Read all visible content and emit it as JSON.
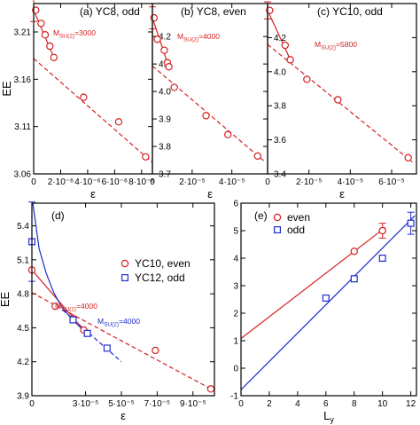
{
  "colors": {
    "red": "#d42020",
    "blue": "#1f2ccf",
    "black": "#000000"
  },
  "chart_data": [
    {
      "type": "scatter",
      "title": "(a) YC8, odd",
      "xlabel": "ε",
      "ylabel": "EE",
      "xlim": [
        0,
        8.8e-06
      ],
      "ylim": [
        3.06,
        3.24
      ],
      "xticks": [
        0,
        2e-06,
        4e-06,
        6e-06,
        8e-06
      ],
      "xtick_labels": [
        "0",
        "2·10⁻⁶",
        "4·10⁻⁶",
        "6·10⁻⁶",
        "8·10⁻⁶"
      ],
      "yticks": [
        3.06,
        3.11,
        3.16,
        3.21
      ],
      "ytick_labels": [
        "3.06",
        "3.11",
        "3.16",
        "3.21"
      ],
      "annotation": "M_SU(2)=3000",
      "series": [
        {
          "style": "circle",
          "color": "red",
          "x": [
            1.5e-07,
            5.5e-07,
            8.5e-07,
            1.2e-06,
            1.5e-06,
            3.7e-06,
            6.3e-06,
            8.3e-06
          ],
          "y": [
            3.233,
            3.219,
            3.207,
            3.195,
            3.183,
            3.141,
            3.115,
            3.078
          ]
        }
      ],
      "fit_solid": {
        "color": "red",
        "x": [
          0,
          1.5e-06
        ],
        "y": [
          3.233,
          3.183
        ]
      },
      "fit_dashed": {
        "color": "red",
        "x": [
          0,
          8.8e-06
        ],
        "y": [
          3.182,
          3.072
        ]
      },
      "error_bars": [
        {
          "x": 0,
          "y": 3.233,
          "err": 0.012,
          "color": "red"
        }
      ]
    },
    {
      "type": "scatter",
      "title": "(b) YC8, even",
      "xlabel": "ε",
      "ylabel": "",
      "xlim": [
        0,
        5.8e-05
      ],
      "ylim": [
        3.7,
        4.32
      ],
      "xticks": [
        0,
        2e-05,
        4e-05
      ],
      "xtick_labels": [
        "0",
        "2·10⁻⁵",
        "4·10⁻⁵"
      ],
      "yticks": [
        3.7,
        3.8,
        3.9,
        4.0,
        4.1,
        4.2
      ],
      "ytick_labels": [
        "3.7",
        "3.8",
        "3.9",
        "4.0",
        "4.1",
        "4.2"
      ],
      "annotation": "M_SU(2)=4000",
      "series": [
        {
          "style": "circle",
          "color": "red",
          "x": [
            8e-07,
            2.5e-06,
            6e-06,
            7.5e-06,
            8.3e-06,
            1.1e-05,
            2.7e-05,
            3.8e-05,
            5.3e-05
          ],
          "y": [
            4.268,
            4.19,
            4.15,
            4.105,
            4.09,
            4.015,
            3.912,
            3.843,
            3.765
          ]
        }
      ],
      "fit_solid": {
        "color": "red",
        "x": [
          0,
          8.2e-06
        ],
        "y": [
          4.268,
          4.09
        ]
      },
      "fit_dashed": {
        "color": "red",
        "x": [
          0,
          5.6e-05
        ],
        "y": [
          4.093,
          3.748
        ]
      },
      "error_bars": [
        {
          "x": 0,
          "y": 4.268,
          "err": 0.04,
          "color": "red"
        }
      ]
    },
    {
      "type": "scatter",
      "title": "(c) YC10, odd",
      "xlabel": "ε",
      "ylabel": "",
      "xlim": [
        0,
        7.2e-05
      ],
      "ylim": [
        3.4,
        4.4
      ],
      "xticks": [
        0,
        2e-05,
        4e-05,
        6e-05
      ],
      "xtick_labels": [
        "0",
        "2·10⁻⁵",
        "4·10⁻⁵",
        "6·10⁻⁵"
      ],
      "yticks": [
        3.4,
        3.6,
        3.8,
        4.0,
        4.2
      ],
      "ytick_labels": [
        "3.4",
        "3.6",
        "3.8",
        "4.0",
        "4.2"
      ],
      "annotation": "M_SU(2)=5800",
      "series": [
        {
          "style": "circle",
          "color": "red",
          "x": [
            1e-06,
            8.5e-06,
            1.1e-05,
            1.9e-05,
            3.4e-05,
            6.8e-05
          ],
          "y": [
            4.36,
            4.155,
            4.07,
            3.955,
            3.835,
            3.495
          ]
        }
      ],
      "fit_solid": {
        "color": "red",
        "x": [
          0,
          1.1e-05
        ],
        "y": [
          4.36,
          4.07
        ]
      },
      "fit_dashed": {
        "color": "red",
        "x": [
          0,
          7e-05
        ],
        "y": [
          4.16,
          3.47
        ]
      },
      "error_bars": [
        {
          "x": 0,
          "y": 4.36,
          "err": 0.05,
          "color": "red"
        }
      ]
    },
    {
      "type": "scatter",
      "title": "(d)",
      "xlabel": "ε",
      "ylabel": "EE",
      "xlim": [
        0,
        0.000102
      ],
      "ylim": [
        3.9,
        5.6
      ],
      "xticks": [
        0,
        3e-05,
        5e-05,
        7e-05,
        9e-05
      ],
      "xtick_labels": [
        "0",
        "3·10⁻⁵",
        "5·10⁻⁵",
        "7·10⁻⁵",
        "9·10⁻⁵"
      ],
      "yticks": [
        3.9,
        4.2,
        4.5,
        4.8,
        5.1,
        5.4
      ],
      "ytick_labels": [
        "3.9",
        "4.2",
        "4.5",
        "4.8",
        "5.1",
        "5.4"
      ],
      "legend": [
        {
          "label": "YC10, even",
          "style": "circle",
          "color": "red"
        },
        {
          "label": "YC12, odd",
          "style": "square",
          "color": "blue"
        }
      ],
      "annotations": [
        {
          "text": "M_SU(2)=4000",
          "color": "red"
        },
        {
          "text": "M_SU(2)=4000",
          "color": "blue"
        }
      ],
      "series": [
        {
          "name": "YC10, even",
          "style": "circle",
          "color": "red",
          "x": [
            0,
            1.3e-05,
            2.3e-05,
            2.9e-05,
            6.9e-05,
            0.0001
          ],
          "y": [
            5.01,
            4.69,
            4.58,
            4.48,
            4.3,
            3.96
          ]
        },
        {
          "name": "YC12, odd",
          "style": "square",
          "color": "blue",
          "x": [
            0,
            2.3e-05,
            3.1e-05,
            4.2e-05
          ],
          "y": [
            5.26,
            4.57,
            4.45,
            4.32
          ]
        }
      ],
      "fit_solid": [
        {
          "color": "red",
          "x": [
            0,
            2.9e-05
          ],
          "y": [
            5.01,
            4.48
          ]
        }
      ],
      "fit_curve": [
        {
          "color": "blue",
          "x": [
            0,
            4e-06,
            8e-06,
            1.2e-05,
            1.6e-05,
            2e-05,
            2.4e-05,
            2.8e-05,
            3.2e-05
          ],
          "y": [
            5.66,
            5.2,
            4.98,
            4.82,
            4.7,
            4.62,
            4.55,
            4.49,
            4.45
          ]
        }
      ],
      "fit_dashed": [
        {
          "color": "red",
          "x": [
            0,
            0.0001
          ],
          "y": [
            4.81,
            3.96
          ]
        },
        {
          "color": "blue",
          "x": [
            1.7e-05,
            5e-05
          ],
          "y": [
            4.66,
            4.2
          ]
        }
      ],
      "error_bars": [
        {
          "x": 0,
          "y": 5.26,
          "err": 0.35,
          "color": "blue"
        }
      ]
    },
    {
      "type": "scatter",
      "title": "(e)",
      "xlabel": "L_y",
      "ylabel": "",
      "xlim": [
        0,
        12.4
      ],
      "ylim": [
        -1,
        6
      ],
      "xticks": [
        0,
        2,
        4,
        6,
        8,
        10,
        12
      ],
      "xtick_labels": [
        "0",
        "2",
        "4",
        "6",
        "8",
        "10",
        "12"
      ],
      "yticks": [
        -1,
        0,
        1,
        2,
        3,
        4,
        5,
        6
      ],
      "ytick_labels": [
        "-1",
        "0",
        "1",
        "2",
        "3",
        "4",
        "5",
        "6"
      ],
      "legend": [
        {
          "label": "even",
          "style": "circle",
          "color": "red"
        },
        {
          "label": "odd",
          "style": "square",
          "color": "blue"
        }
      ],
      "series": [
        {
          "name": "even",
          "style": "circle",
          "color": "red",
          "x": [
            8,
            10
          ],
          "y": [
            4.25,
            5.0
          ]
        },
        {
          "name": "odd",
          "style": "square",
          "color": "blue",
          "x": [
            6,
            8,
            10,
            12
          ],
          "y": [
            2.55,
            3.25,
            4.0,
            5.27
          ]
        }
      ],
      "error_bars": [
        {
          "x": 10,
          "y": 5.0,
          "err": 0.27,
          "color": "red"
        },
        {
          "x": 12,
          "y": 5.27,
          "err": 0.4,
          "color": "blue"
        }
      ],
      "fit_solid": [
        {
          "color": "red",
          "x": [
            0,
            10.2
          ],
          "y": [
            1.08,
            5.12
          ]
        },
        {
          "color": "blue",
          "x": [
            0,
            12.3
          ],
          "y": [
            -0.78,
            5.55
          ]
        }
      ]
    }
  ]
}
